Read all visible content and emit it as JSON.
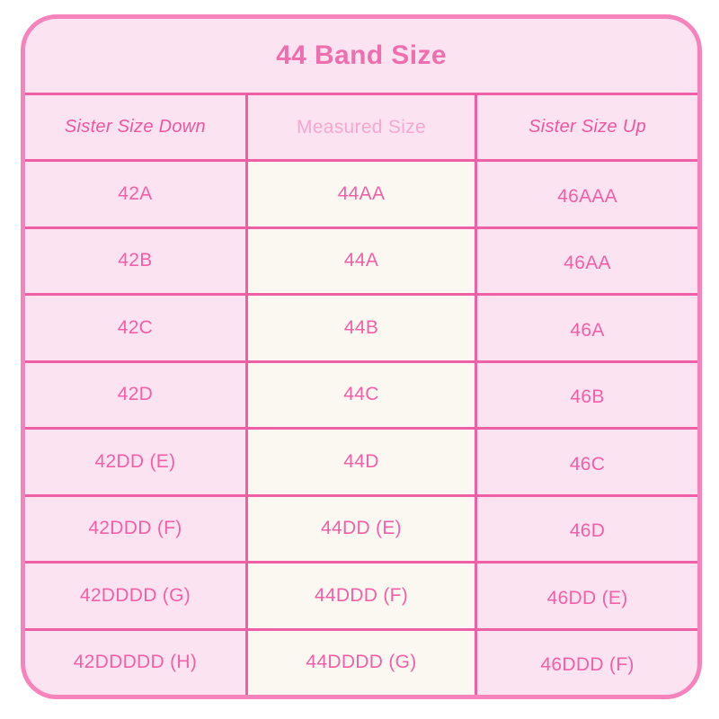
{
  "chart_data": {
    "type": "table",
    "title": "44 Band Size",
    "columns": [
      "Sister Size Down",
      "Measured Size",
      "Sister Size Up"
    ],
    "rows": [
      [
        "42A",
        "44AA",
        "46AAA"
      ],
      [
        "42B",
        "44A",
        "46AA"
      ],
      [
        "42C",
        "44B",
        "46A"
      ],
      [
        "42D",
        "44C",
        "46B"
      ],
      [
        "42DD (E)",
        "44D",
        "46C"
      ],
      [
        "42DDD (F)",
        "44DD (E)",
        "46D"
      ],
      [
        "42DDDD (G)",
        "44DDD (F)",
        "46DD (E)"
      ],
      [
        "42DDDDD (H)",
        "44DDDD (G)",
        "46DDD (F)"
      ]
    ],
    "layout_hints": {
      "highlighted_column": "Measured Size",
      "grid": "on"
    }
  },
  "colors": {
    "card_border": "#f783bd",
    "grid_line": "#ee5fa5",
    "pink_cell_bg": "#fce3f1",
    "measured_cell_bg": "#fbf8f2",
    "title_text": "#ee6fae",
    "cell_text": "#f45fa5",
    "sister_header_text": "#f0569e",
    "measured_header_text": "#f6a8d0",
    "page_bg": "#ffffff"
  }
}
